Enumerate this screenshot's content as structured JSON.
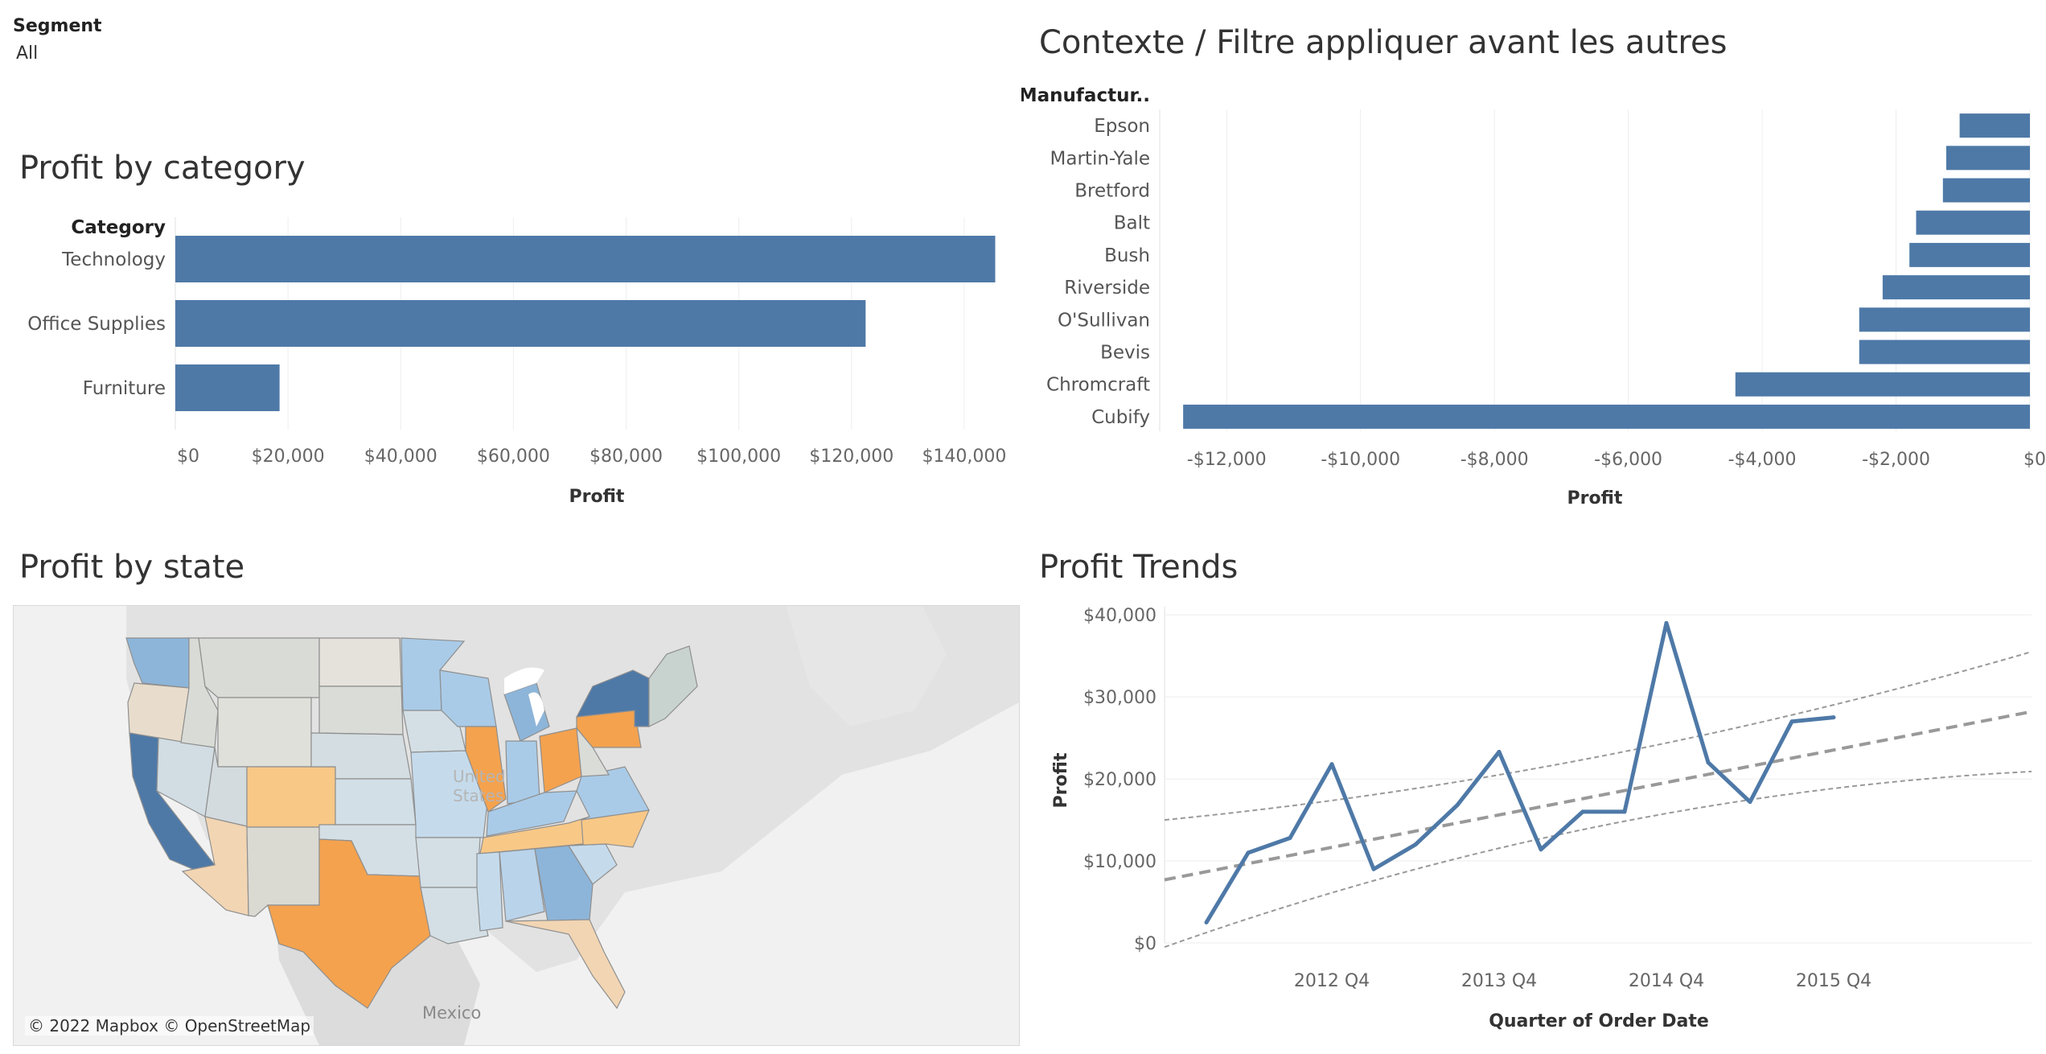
{
  "filter": {
    "label": "Segment",
    "value": "All"
  },
  "colors": {
    "bar": "#4e79a7",
    "grid": "#eeeeee",
    "trend": "#999999",
    "axis_text": "#666666"
  },
  "titles": {
    "category": "Profit by category",
    "manufacturer": "Contexte / Filtre appliquer avant les autres",
    "state": "Profit by state",
    "trends": "Profit Trends"
  },
  "map": {
    "attribution": "© 2022 Mapbox © OpenStreetMap",
    "label_mexico": "Mexico",
    "label_us": "United States"
  },
  "chart_data": [
    {
      "type": "bar",
      "title": "Profit by category",
      "orientation": "horizontal",
      "dimension_header": "Category",
      "categories": [
        "Technology",
        "Office Supplies",
        "Furniture"
      ],
      "values": [
        145500,
        122500,
        18500
      ],
      "xlabel": "Profit",
      "xlim": [
        0,
        150000
      ],
      "ticks": [
        0,
        20000,
        40000,
        60000,
        80000,
        100000,
        120000,
        140000
      ],
      "tick_labels": [
        "$0",
        "$20,000",
        "$40,000",
        "$60,000",
        "$80,000",
        "$100,000",
        "$120,000",
        "$140,000"
      ]
    },
    {
      "type": "bar",
      "title": "Contexte / Filtre appliquer avant les autres",
      "orientation": "horizontal",
      "dimension_header": "Manufactur..",
      "categories": [
        "Epson",
        "Martin-Yale",
        "Bretford",
        "Balt",
        "Bush",
        "Riverside",
        "O'Sullivan",
        "Bevis",
        "Chromcraft",
        "Cubify"
      ],
      "values": [
        -1050,
        -1250,
        -1300,
        -1700,
        -1800,
        -2200,
        -2550,
        -2550,
        -4400,
        -12650
      ],
      "xlabel": "Profit",
      "xlim": [
        -13000,
        0
      ],
      "ticks": [
        -12000,
        -10000,
        -8000,
        -6000,
        -4000,
        -2000,
        0
      ],
      "tick_labels": [
        "-$12,000",
        "-$10,000",
        "-$8,000",
        "-$6,000",
        "-$4,000",
        "-$2,000",
        "$0"
      ]
    },
    {
      "type": "line",
      "title": "Profit Trends",
      "xlabel": "Quarter of Order Date",
      "ylabel": "Profit",
      "x": [
        "2012 Q1",
        "2012 Q2",
        "2012 Q3",
        "2012 Q4",
        "2013 Q1",
        "2013 Q2",
        "2013 Q3",
        "2013 Q4",
        "2014 Q1",
        "2014 Q2",
        "2014 Q3",
        "2014 Q4",
        "2015 Q1",
        "2015 Q2",
        "2015 Q3",
        "2015 Q4"
      ],
      "series": [
        {
          "values": [
            2500,
            11000,
            12800,
            21800,
            9000,
            12000,
            16800,
            23300,
            11400,
            16000,
            16000,
            39000,
            22000,
            17200,
            27000,
            27500
          ]
        }
      ],
      "trend_line": {
        "start": 7700,
        "end": 28200
      },
      "confidence_upper": {
        "start": 15000,
        "mid": 22700,
        "end": 35500
      },
      "confidence_lower": {
        "start": -500,
        "mid": 14200,
        "end": 20900
      },
      "ylim": [
        0,
        41000
      ],
      "y_ticks": [
        0,
        10000,
        20000,
        30000,
        40000
      ],
      "y_tick_labels": [
        "$0",
        "$10,000",
        "$20,000",
        "$30,000",
        "$40,000"
      ],
      "x_ticks": [
        "2012 Q4",
        "2013 Q4",
        "2014 Q4",
        "2015 Q4"
      ],
      "grid": true
    },
    {
      "type": "map",
      "title": "Profit by state",
      "color_scale": "orange (loss) to blue (profit), diverging",
      "states": [
        {
          "name": "Washington",
          "color": "#8db5d9"
        },
        {
          "name": "Oregon",
          "color": "#e8ddcc"
        },
        {
          "name": "California",
          "color": "#4e79a7"
        },
        {
          "name": "Nevada",
          "color": "#d1dde3"
        },
        {
          "name": "Idaho",
          "color": "#d9dcd6"
        },
        {
          "name": "Montana",
          "color": "#d9dcd6"
        },
        {
          "name": "Wyoming",
          "color": "#e0e0da"
        },
        {
          "name": "Utah",
          "color": "#d3dbdf"
        },
        {
          "name": "Arizona",
          "color": "#f2d5b3"
        },
        {
          "name": "Colorado",
          "color": "#f8c887"
        },
        {
          "name": "New Mexico",
          "color": "#dad9d2"
        },
        {
          "name": "North Dakota",
          "color": "#e5e2db"
        },
        {
          "name": "South Dakota",
          "color": "#dadcd8"
        },
        {
          "name": "Nebraska",
          "color": "#d4dde1"
        },
        {
          "name": "Kansas",
          "color": "#d3dfe6"
        },
        {
          "name": "Oklahoma",
          "color": "#d4dfe5"
        },
        {
          "name": "Texas",
          "color": "#f4a24e"
        },
        {
          "name": "Minnesota",
          "color": "#a9cbe8"
        },
        {
          "name": "Iowa",
          "color": "#d4dfe5"
        },
        {
          "name": "Missouri",
          "color": "#c5dbec"
        },
        {
          "name": "Arkansas",
          "color": "#d4dfe5"
        },
        {
          "name": "Louisiana",
          "color": "#d4dfe5"
        },
        {
          "name": "Wisconsin",
          "color": "#a9cbe8"
        },
        {
          "name": "Illinois",
          "color": "#f4a24e"
        },
        {
          "name": "Michigan",
          "color": "#8db5d9"
        },
        {
          "name": "Indiana",
          "color": "#a9cbe8"
        },
        {
          "name": "Ohio",
          "color": "#f4a24e"
        },
        {
          "name": "Kentucky",
          "color": "#a9cbe8"
        },
        {
          "name": "Tennessee",
          "color": "#f8c887"
        },
        {
          "name": "Mississippi",
          "color": "#c5dbec"
        },
        {
          "name": "Alabama",
          "color": "#b9d3ea"
        },
        {
          "name": "Georgia",
          "color": "#8db5d9"
        },
        {
          "name": "Florida",
          "color": "#f2d5b3"
        },
        {
          "name": "South Carolina",
          "color": "#c5dbec"
        },
        {
          "name": "North Carolina",
          "color": "#f8c887"
        },
        {
          "name": "Virginia",
          "color": "#a9cbe8"
        },
        {
          "name": "West Virginia",
          "color": "#dadcd8"
        },
        {
          "name": "Pennsylvania",
          "color": "#f4a24e"
        },
        {
          "name": "New York",
          "color": "#4e79a7"
        },
        {
          "name": "New England",
          "color": "#c8d3cf"
        }
      ]
    }
  ]
}
